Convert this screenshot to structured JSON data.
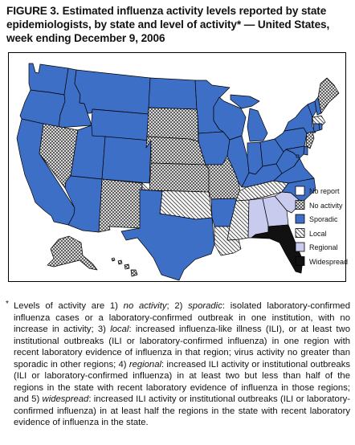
{
  "title": {
    "label": "FIGURE 3.",
    "text": "Estimated influenza activity levels reported by state epidemiologists, by state and level of activity* — United States, week ending December 9, 2006"
  },
  "colors": {
    "no_report": "#ffffff",
    "no_activity_bg": "#ffffff",
    "no_activity_pattern": "#444444",
    "sporadic": "#3d6fc7",
    "local_bg": "#ffffff",
    "local_pattern": "#555555",
    "regional": "#c8caee",
    "widespread": "#111111",
    "border": "#000000"
  },
  "legend": [
    {
      "key": "no_report",
      "label": "No report"
    },
    {
      "key": "no_activity",
      "label": "No activity"
    },
    {
      "key": "sporadic",
      "label": "Sporadic"
    },
    {
      "key": "local",
      "label": "Local"
    },
    {
      "key": "regional",
      "label": "Regional"
    },
    {
      "key": "widespread",
      "label": "Widespread"
    }
  ],
  "states": {
    "WA": "sporadic",
    "OR": "sporadic",
    "CA": "sporadic",
    "ID": "sporadic",
    "NV": "no_activity",
    "MT": "sporadic",
    "WY": "sporadic",
    "UT": "sporadic",
    "AZ": "sporadic",
    "CO": "sporadic",
    "NM": "no_activity",
    "ND": "sporadic",
    "SD": "no_activity",
    "NE": "no_activity",
    "KS": "no_activity",
    "OK": "local",
    "TX": "sporadic",
    "MN": "sporadic",
    "IA": "sporadic",
    "MO": "no_activity",
    "AR": "sporadic",
    "LA": "local",
    "WI": "sporadic",
    "IL": "sporadic",
    "MI": "sporadic",
    "IN": "sporadic",
    "OH": "sporadic",
    "KY": "sporadic",
    "TN": "local",
    "MS": "local",
    "AL": "regional",
    "GA": "regional",
    "FL": "widespread",
    "SC": "regional",
    "NC": "sporadic",
    "VA": "sporadic",
    "WV": "sporadic",
    "PA": "sporadic",
    "NY": "sporadic",
    "VT": "sporadic",
    "NH": "sporadic",
    "ME": "no_activity",
    "MA": "local",
    "CT": "sporadic",
    "RI": "sporadic",
    "NJ": "no_activity",
    "DE": "sporadic",
    "MD": "sporadic",
    "DC": "sporadic",
    "AK": "no_activity",
    "HI": "no_activity"
  },
  "footnote": {
    "marker": "*",
    "parts": [
      {
        "t": "Levels of activity are 1) ",
        "i": false
      },
      {
        "t": "no activity",
        "i": true
      },
      {
        "t": "; 2) ",
        "i": false
      },
      {
        "t": "sporadic",
        "i": true
      },
      {
        "t": ": isolated laboratory-confirmed influenza cases or a laboratory-confirmed outbreak in one institution, with no increase in activity; 3) ",
        "i": false
      },
      {
        "t": "local",
        "i": true
      },
      {
        "t": ": increased influenza-like illness (ILI), or at least two institutional outbreaks (ILI or laboratory-confirmed influenza) in one region with recent laboratory evidence of influenza in that region; virus activity no greater than sporadic in other regions; 4) ",
        "i": false
      },
      {
        "t": "regional",
        "i": true
      },
      {
        "t": ": increased ILI activity or institutional outbreaks (ILI or laboratory-confirmed influenza) in at least two but less than half of the regions in the state with recent laboratory evidence of influenza in those regions; and 5) ",
        "i": false
      },
      {
        "t": "widespread",
        "i": true
      },
      {
        "t": ": increased ILI activity or institutional outbreaks (ILI or laboratory-confirmed influenza) in at least half the regions in the state with recent laboratory evidence of influenza in the state.",
        "i": false
      }
    ]
  }
}
